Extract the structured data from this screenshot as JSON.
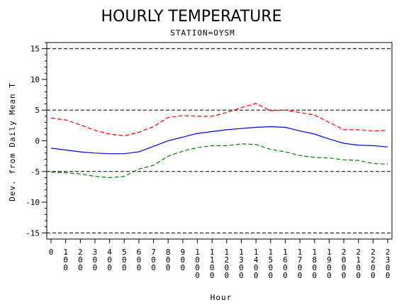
{
  "chart_data": {
    "type": "line",
    "title": "HOURLY TEMPERATURE",
    "subtitle": "STATION=OYSM",
    "xlabel": "Hour",
    "ylabel": "Dev. from Daily Mean T",
    "x": [
      0,
      100,
      200,
      300,
      400,
      500,
      600,
      700,
      800,
      900,
      1000,
      1100,
      1200,
      1300,
      1400,
      1500,
      1600,
      1700,
      1800,
      1900,
      2000,
      2100,
      2200,
      2300
    ],
    "x_tick_labels": [
      "0",
      "100",
      "200",
      "300",
      "400",
      "500",
      "600",
      "700",
      "800",
      "900",
      "1000",
      "1100",
      "1200",
      "1300",
      "1400",
      "1500",
      "1600",
      "1700",
      "1800",
      "1900",
      "2000",
      "2100",
      "2200",
      "2300"
    ],
    "ylim": [
      -16,
      16
    ],
    "y_ticks": [
      -15,
      -10,
      -5,
      0,
      5,
      10,
      15
    ],
    "reference_lines": [
      -15,
      -5,
      5,
      15
    ],
    "grid": false,
    "series": [
      {
        "style": "dashed",
        "color": "#ff0000",
        "values": [
          3.7,
          3.4,
          2.6,
          1.7,
          1.1,
          0.8,
          1.4,
          2.3,
          3.8,
          4.1,
          4.0,
          4.0,
          4.6,
          5.4,
          6.1,
          4.9,
          5.0,
          4.6,
          4.2,
          3.0,
          1.8,
          1.8,
          1.6,
          1.7
        ]
      },
      {
        "style": "solid",
        "color": "#0000ff",
        "values": [
          -1.2,
          -1.5,
          -1.8,
          -2.0,
          -2.1,
          -2.1,
          -1.8,
          -0.9,
          0.0,
          0.6,
          1.2,
          1.5,
          1.8,
          2.0,
          2.2,
          2.3,
          2.2,
          1.6,
          1.1,
          0.3,
          -0.4,
          -0.7,
          -0.8,
          -1.0
        ]
      },
      {
        "style": "dashed",
        "color": "#008000",
        "values": [
          -5.1,
          -5.2,
          -5.4,
          -5.8,
          -6.0,
          -5.8,
          -4.6,
          -4.0,
          -2.5,
          -1.7,
          -1.1,
          -0.8,
          -0.8,
          -0.5,
          -0.6,
          -1.4,
          -1.8,
          -2.4,
          -2.7,
          -2.8,
          -3.1,
          -3.2,
          -3.7,
          -3.8
        ]
      }
    ]
  }
}
